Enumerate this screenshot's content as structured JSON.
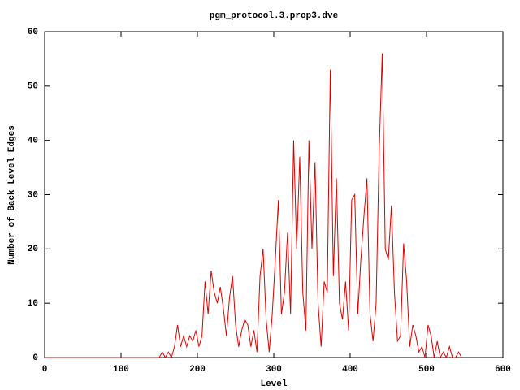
{
  "chart_data": {
    "type": "line",
    "title": "pgm_protocol.3.prop3.dve",
    "x_label": "Level",
    "y_label": "Number of Back Level Edges",
    "xlim": [
      0,
      600
    ],
    "ylim": [
      0,
      60
    ],
    "xticks": [
      0,
      100,
      200,
      300,
      400,
      500,
      600
    ],
    "yticks": [
      0,
      10,
      20,
      30,
      40,
      50,
      60
    ],
    "grid": false,
    "series": [
      {
        "color": "#e00000",
        "x": [
          0,
          150,
          154,
          158,
          162,
          166,
          170,
          174,
          178,
          182,
          186,
          190,
          194,
          198,
          202,
          206,
          210,
          214,
          218,
          222,
          226,
          230,
          234,
          238,
          242,
          246,
          250,
          254,
          258,
          262,
          266,
          270,
          274,
          278,
          282,
          286,
          290,
          294,
          298,
          302,
          306,
          310,
          314,
          318,
          322,
          326,
          330,
          334,
          338,
          342,
          346,
          350,
          354,
          358,
          362,
          366,
          370,
          374,
          378,
          382,
          386,
          390,
          394,
          398,
          402,
          406,
          410,
          414,
          418,
          422,
          426,
          430,
          434,
          438,
          442,
          446,
          450,
          454,
          458,
          462,
          466,
          470,
          474,
          478,
          482,
          486,
          490,
          494,
          498,
          502,
          506,
          510,
          514,
          518,
          522,
          526,
          530,
          534,
          538,
          542,
          546
        ],
        "values": [
          0,
          0,
          1,
          0,
          1,
          0,
          2,
          6,
          2,
          4,
          2,
          4,
          3,
          5,
          2,
          4,
          14,
          8,
          16,
          12,
          10,
          13,
          9,
          4,
          11,
          15,
          6,
          2,
          5,
          7,
          6,
          2,
          5,
          1,
          15,
          20,
          7,
          1,
          8,
          18,
          29,
          8,
          12,
          23,
          8,
          40,
          20,
          37,
          12,
          5,
          40,
          20,
          36,
          10,
          2,
          14,
          12,
          53,
          15,
          33,
          10,
          7,
          14,
          5,
          29,
          30,
          8,
          18,
          26,
          33,
          8,
          3,
          10,
          38,
          56,
          20,
          18,
          28,
          12,
          3,
          4,
          21,
          14,
          2,
          6,
          4,
          1,
          2,
          0,
          6,
          4,
          0,
          3,
          0,
          1,
          0,
          2,
          0,
          0,
          1,
          0
        ]
      }
    ]
  }
}
